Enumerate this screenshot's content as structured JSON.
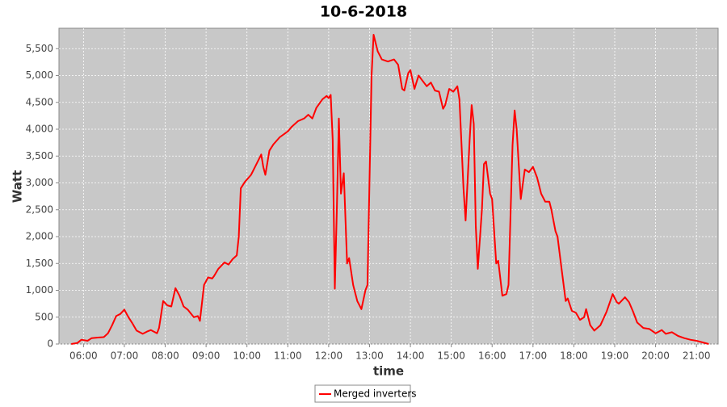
{
  "chart_data": {
    "type": "line",
    "title": "10-6-2018",
    "x_label": "time",
    "y_label": "Watt",
    "x": [
      5.7,
      5.85,
      5.95,
      6.1,
      6.2,
      6.35,
      6.5,
      6.6,
      6.7,
      6.8,
      6.9,
      7.0,
      7.1,
      7.2,
      7.3,
      7.45,
      7.55,
      7.65,
      7.8,
      7.85,
      7.95,
      8.05,
      8.15,
      8.25,
      8.35,
      8.45,
      8.55,
      8.7,
      8.8,
      8.85,
      8.95,
      9.05,
      9.15,
      9.2,
      9.3,
      9.45,
      9.55,
      9.65,
      9.75,
      9.8,
      9.85,
      9.95,
      10.1,
      10.2,
      10.35,
      10.4,
      10.45,
      10.55,
      10.65,
      10.8,
      11.0,
      11.1,
      11.25,
      11.4,
      11.5,
      11.6,
      11.7,
      11.85,
      11.95,
      12.0,
      12.05,
      12.1,
      12.15,
      12.2,
      12.25,
      12.3,
      12.37,
      12.45,
      12.5,
      12.6,
      12.7,
      12.8,
      12.9,
      12.95,
      13.05,
      13.1,
      13.2,
      13.3,
      13.45,
      13.6,
      13.7,
      13.8,
      13.85,
      13.95,
      14.0,
      14.1,
      14.2,
      14.3,
      14.4,
      14.5,
      14.6,
      14.7,
      14.8,
      14.85,
      14.95,
      15.05,
      15.15,
      15.2,
      15.3,
      15.35,
      15.45,
      15.5,
      15.55,
      15.6,
      15.65,
      15.75,
      15.8,
      15.85,
      15.95,
      16.0,
      16.1,
      16.15,
      16.25,
      16.35,
      16.4,
      16.5,
      16.55,
      16.6,
      16.7,
      16.8,
      16.9,
      17.0,
      17.1,
      17.2,
      17.3,
      17.4,
      17.45,
      17.55,
      17.6,
      17.7,
      17.8,
      17.85,
      17.95,
      18.05,
      18.15,
      18.25,
      18.3,
      18.4,
      18.5,
      18.65,
      18.8,
      18.95,
      19.05,
      19.1,
      19.25,
      19.35,
      19.45,
      19.55,
      19.7,
      19.85,
      20.0,
      20.15,
      20.25,
      20.4,
      20.55,
      20.7,
      20.85,
      21.0,
      21.15,
      21.3
    ],
    "series": [
      {
        "name": "Merged inverters",
        "color": "#ff0000",
        "values": [
          0,
          20,
          80,
          60,
          110,
          120,
          130,
          200,
          350,
          520,
          560,
          640,
          500,
          380,
          250,
          190,
          230,
          260,
          200,
          300,
          800,
          720,
          700,
          1040,
          900,
          700,
          640,
          500,
          520,
          430,
          1100,
          1240,
          1220,
          1270,
          1400,
          1520,
          1480,
          1580,
          1650,
          2000,
          2900,
          3020,
          3150,
          3300,
          3530,
          3300,
          3150,
          3600,
          3720,
          3850,
          3960,
          4050,
          4150,
          4200,
          4270,
          4200,
          4400,
          4560,
          4620,
          4580,
          4640,
          3800,
          1030,
          2500,
          4200,
          2800,
          3180,
          1500,
          1600,
          1100,
          800,
          650,
          1000,
          1100,
          5000,
          5760,
          5450,
          5300,
          5260,
          5300,
          5200,
          4750,
          4720,
          5050,
          5100,
          4750,
          5000,
          4900,
          4800,
          4870,
          4720,
          4700,
          4380,
          4450,
          4750,
          4700,
          4800,
          4550,
          2900,
          2300,
          3800,
          4450,
          4100,
          2200,
          1400,
          2500,
          3350,
          3400,
          2800,
          2700,
          1500,
          1550,
          900,
          930,
          1100,
          3700,
          4350,
          4000,
          2700,
          3250,
          3200,
          3300,
          3100,
          2800,
          2650,
          2650,
          2500,
          2100,
          2000,
          1400,
          800,
          850,
          620,
          580,
          450,
          500,
          650,
          350,
          250,
          350,
          600,
          930,
          780,
          750,
          870,
          780,
          600,
          400,
          300,
          280,
          200,
          260,
          190,
          220,
          150,
          110,
          80,
          60,
          30,
          0
        ]
      }
    ],
    "xlim": [
      5.4,
      21.53
    ],
    "xticks": [
      {
        "value": 6,
        "label": "06:00"
      },
      {
        "value": 7,
        "label": "07:00"
      },
      {
        "value": 8,
        "label": "08:00"
      },
      {
        "value": 9,
        "label": "09:00"
      },
      {
        "value": 10,
        "label": "10:00"
      },
      {
        "value": 11,
        "label": "11:00"
      },
      {
        "value": 12,
        "label": "12:00"
      },
      {
        "value": 13,
        "label": "13:00"
      },
      {
        "value": 14,
        "label": "14:00"
      },
      {
        "value": 15,
        "label": "15:00"
      },
      {
        "value": 16,
        "label": "16:00"
      },
      {
        "value": 17,
        "label": "17:00"
      },
      {
        "value": 18,
        "label": "18:00"
      },
      {
        "value": 19,
        "label": "19:00"
      },
      {
        "value": 20,
        "label": "20:00"
      },
      {
        "value": 21,
        "label": "21:00"
      }
    ],
    "ylim": [
      0,
      5880
    ],
    "yticks": [
      0,
      500,
      {
        "value": 1000,
        "label": "1,000"
      },
      {
        "value": 1500,
        "label": "1,500"
      },
      {
        "value": 2000,
        "label": "2,000"
      },
      {
        "value": 2500,
        "label": "2,500"
      },
      {
        "value": 3000,
        "label": "3,000"
      },
      {
        "value": 3500,
        "label": "3,500"
      },
      {
        "value": 4000,
        "label": "4,000"
      },
      {
        "value": 4500,
        "label": "4,500"
      },
      {
        "value": 5000,
        "label": "5,000"
      },
      {
        "value": 5500,
        "label": "5,500"
      }
    ],
    "grid": true
  }
}
